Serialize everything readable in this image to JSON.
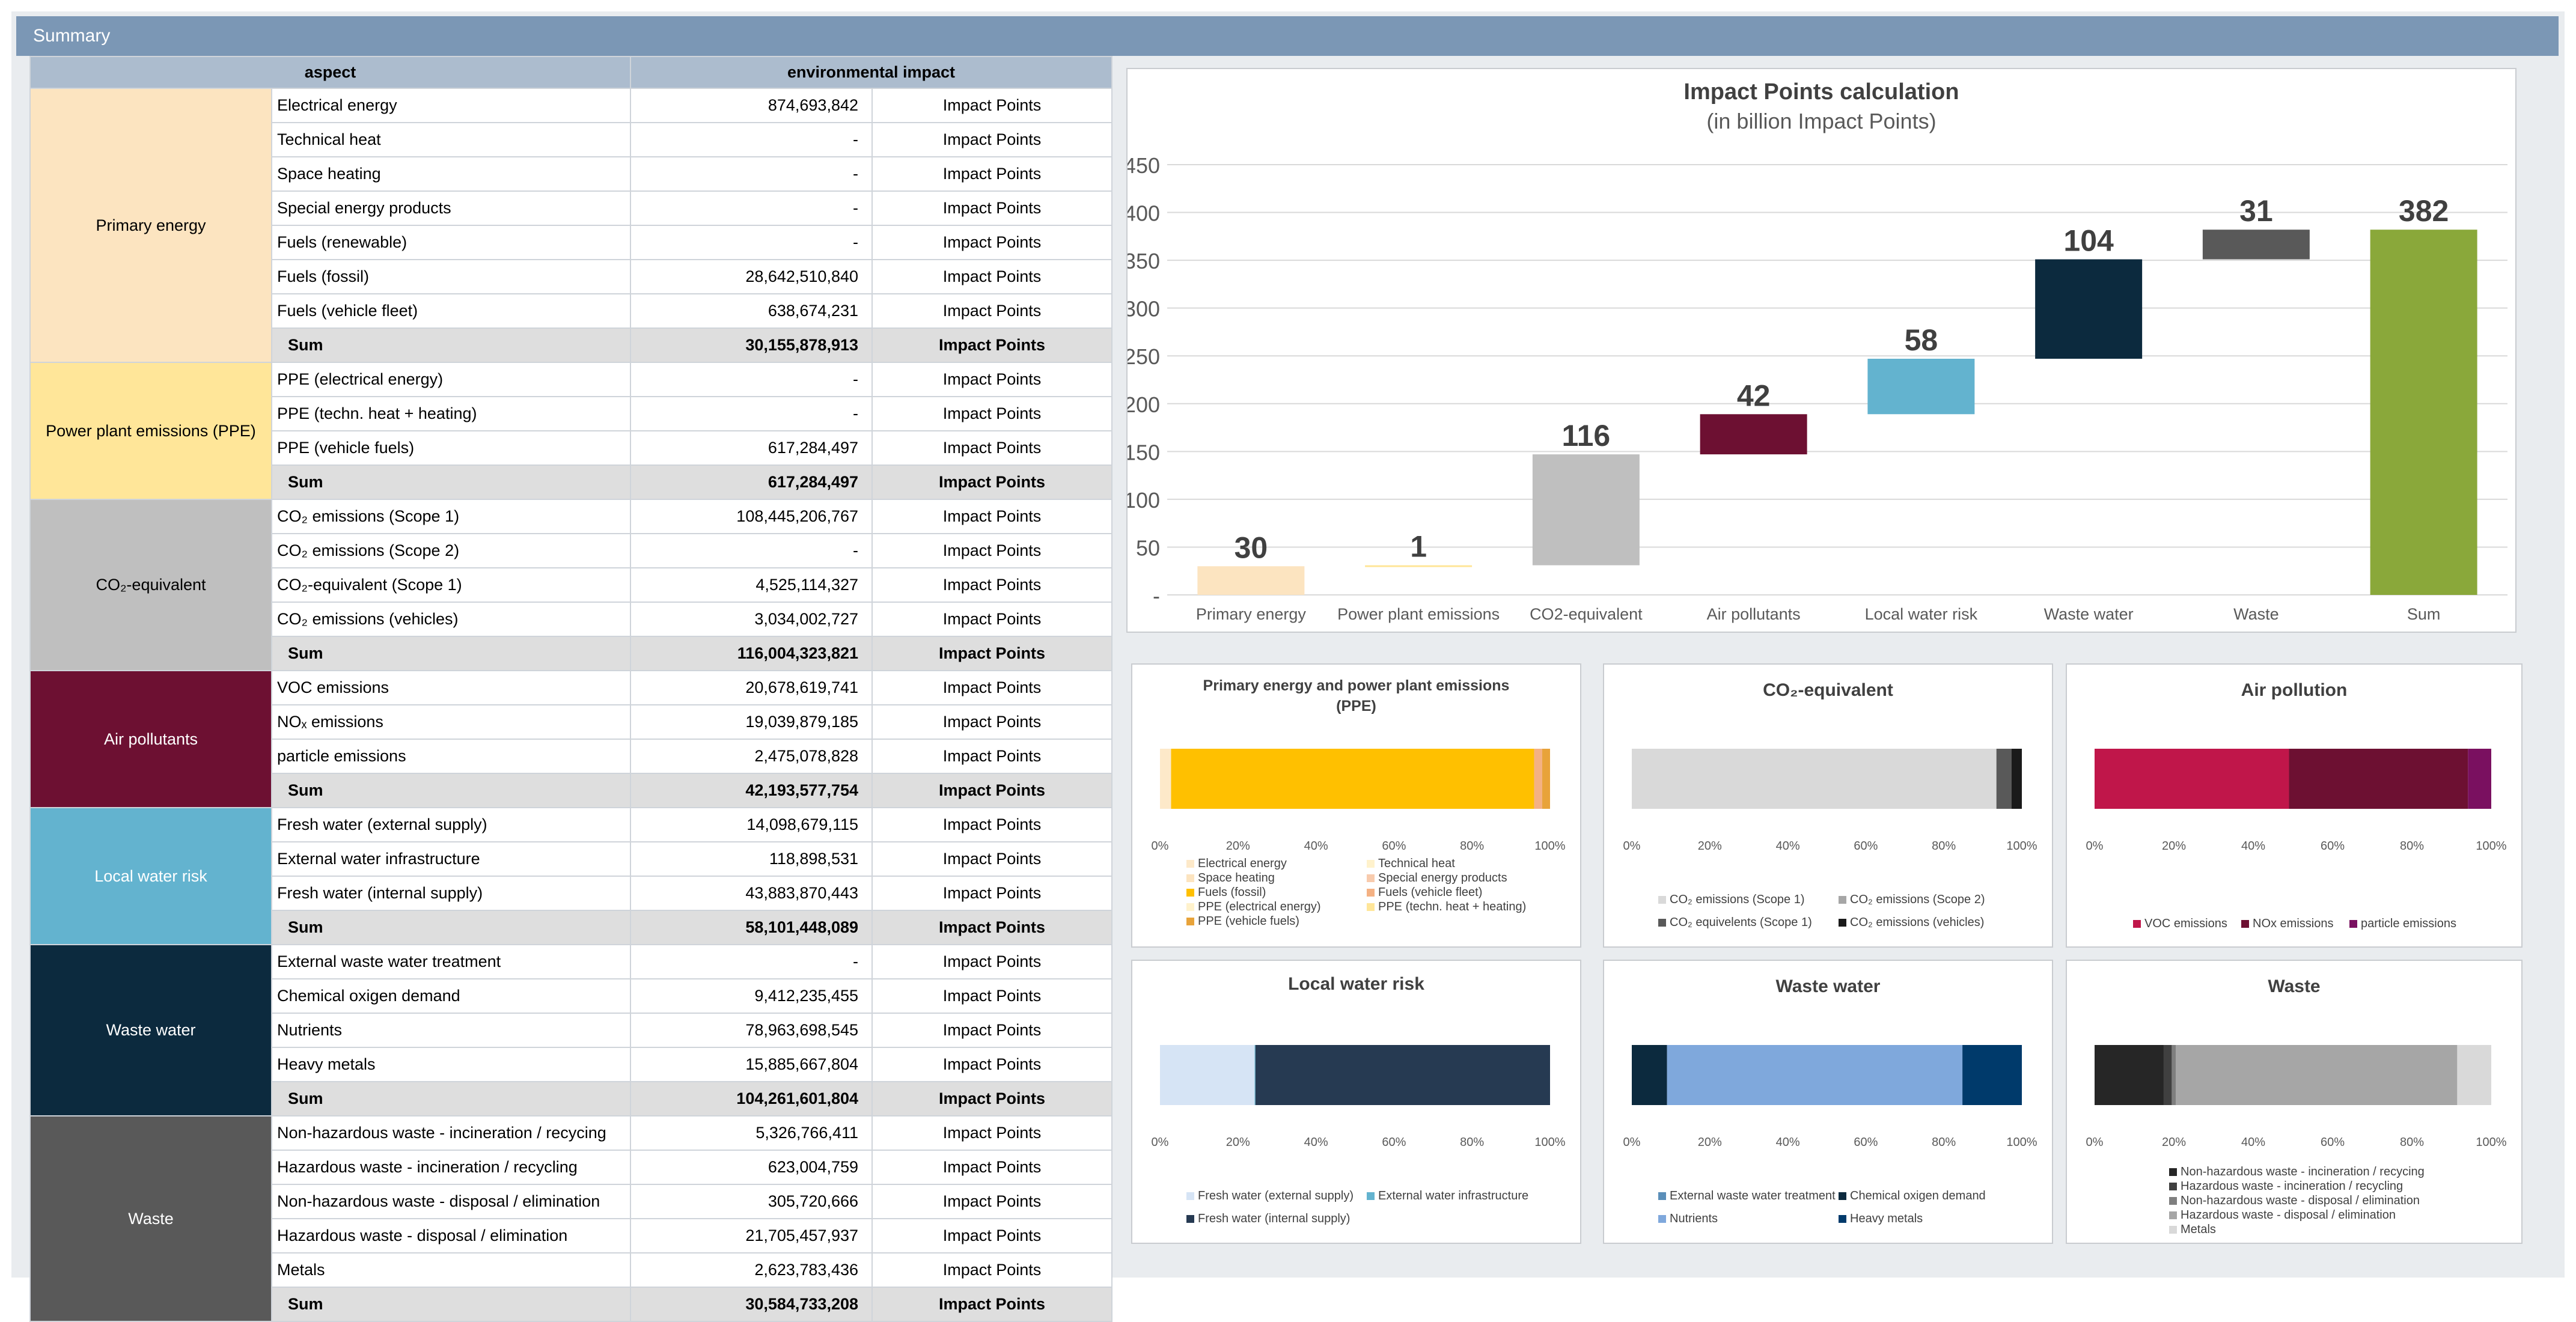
{
  "header": {
    "title": "Summary"
  },
  "table": {
    "col_aspect": "aspect",
    "col_impact": "environmental impact",
    "groups": [
      {
        "label": "Primary energy",
        "color": "#fce4c0",
        "text_color": "#000000",
        "rows": [
          {
            "label": "Electrical energy",
            "value": "874,693,842",
            "unit": "Impact Points"
          },
          {
            "label": "Technical heat",
            "value": "-",
            "unit": "Impact Points"
          },
          {
            "label": "Space heating",
            "value": "-",
            "unit": "Impact Points"
          },
          {
            "label": "Special energy products",
            "value": "-",
            "unit": "Impact Points"
          },
          {
            "label": "Fuels (renewable)",
            "value": "-",
            "unit": "Impact Points"
          },
          {
            "label": "Fuels (fossil)",
            "value": "28,642,510,840",
            "unit": "Impact Points"
          },
          {
            "label": "Fuels (vehicle fleet)",
            "value": "638,674,231",
            "unit": "Impact Points"
          }
        ],
        "sum": {
          "label": "Sum",
          "value": "30,155,878,913",
          "unit": "Impact Points"
        }
      },
      {
        "label": "Power plant emissions (PPE)",
        "color": "#ffe699",
        "text_color": "#000000",
        "rows": [
          {
            "label": "PPE (electrical energy)",
            "value": "-",
            "unit": "Impact Points"
          },
          {
            "label": "PPE (techn. heat + heating)",
            "value": "-",
            "unit": "Impact Points"
          },
          {
            "label": "PPE (vehicle fuels)",
            "value": "617,284,497",
            "unit": "Impact Points"
          }
        ],
        "sum": {
          "label": "Sum",
          "value": "617,284,497",
          "unit": "Impact Points"
        }
      },
      {
        "label": "CO₂-equivalent",
        "color": "#bfbfbf",
        "text_color": "#000000",
        "rows": [
          {
            "label": "CO₂ emissions (Scope 1)",
            "value": "108,445,206,767",
            "unit": "Impact Points"
          },
          {
            "label": "CO₂ emissions (Scope 2)",
            "value": "-",
            "unit": "Impact Points"
          },
          {
            "label": "CO₂-equivalent (Scope 1)",
            "value": "4,525,114,327",
            "unit": "Impact Points"
          },
          {
            "label": "CO₂ emissions (vehicles)",
            "value": "3,034,002,727",
            "unit": "Impact Points"
          }
        ],
        "sum": {
          "label": "Sum",
          "value": "116,004,323,821",
          "unit": "Impact Points"
        }
      },
      {
        "label": "Air pollutants",
        "color": "#6d1032",
        "text_color": "#ffffff",
        "rows": [
          {
            "label": "VOC emissions",
            "value": "20,678,619,741",
            "unit": "Impact Points"
          },
          {
            "label": "NOₓ emissions",
            "value": "19,039,879,185",
            "unit": "Impact Points"
          },
          {
            "label": "particle emissions",
            "value": "2,475,078,828",
            "unit": "Impact Points"
          }
        ],
        "sum": {
          "label": "Sum",
          "value": "42,193,577,754",
          "unit": "Impact Points"
        }
      },
      {
        "label": "Local water risk",
        "color": "#63b3cf",
        "text_color": "#ffffff",
        "rows": [
          {
            "label": "Fresh water (external supply)",
            "value": "14,098,679,115",
            "unit": "Impact Points"
          },
          {
            "label": "External water infrastructure",
            "value": "118,898,531",
            "unit": "Impact Points"
          },
          {
            "label": "Fresh water (internal supply)",
            "value": "43,883,870,443",
            "unit": "Impact Points"
          }
        ],
        "sum": {
          "label": "Sum",
          "value": "58,101,448,089",
          "unit": "Impact Points"
        }
      },
      {
        "label": "Waste water",
        "color": "#0c2a3e",
        "text_color": "#ffffff",
        "rows": [
          {
            "label": "External waste water treatment",
            "value": "-",
            "unit": "Impact Points"
          },
          {
            "label": "Chemical oxigen demand",
            "value": "9,412,235,455",
            "unit": "Impact Points"
          },
          {
            "label": "Nutrients",
            "value": "78,963,698,545",
            "unit": "Impact Points"
          },
          {
            "label": "Heavy metals",
            "value": "15,885,667,804",
            "unit": "Impact Points"
          }
        ],
        "sum": {
          "label": "Sum",
          "value": "104,261,601,804",
          "unit": "Impact Points"
        }
      },
      {
        "label": "Waste",
        "color": "#595959",
        "text_color": "#ffffff",
        "rows": [
          {
            "label": "Non-hazardous waste - incineration / recycing",
            "value": "5,326,766,411",
            "unit": "Impact Points"
          },
          {
            "label": "Hazardous waste - incineration / recycling",
            "value": "623,004,759",
            "unit": "Impact Points"
          },
          {
            "label": "Non-hazardous waste - disposal / elimination",
            "value": "305,720,666",
            "unit": "Impact Points"
          },
          {
            "label": "Hazardous waste - disposal / elimination",
            "value": "21,705,457,937",
            "unit": "Impact Points"
          },
          {
            "label": "Metals",
            "value": "2,623,783,436",
            "unit": "Impact Points"
          }
        ],
        "sum": {
          "label": "Sum",
          "value": "30,584,733,208",
          "unit": "Impact Points"
        }
      }
    ]
  },
  "chart_data": [
    {
      "type": "bar",
      "title": "Impact Points calculation",
      "subtitle": "(in billion Impact Points)",
      "categories": [
        "Primary energy",
        "Power plant emissions",
        "CO2-equivalent",
        "Air pollutants",
        "Local water risk",
        "Waste water",
        "Waste",
        "Sum"
      ],
      "labels": [
        "30",
        "1",
        "116",
        "42",
        "58",
        "104",
        "31",
        "382"
      ],
      "bases": [
        0,
        30,
        31,
        147,
        189,
        247,
        351,
        0
      ],
      "values": [
        30,
        1,
        116,
        42,
        58,
        104,
        31,
        382
      ],
      "colors": [
        "#fce4c0",
        "#ffe699",
        "#bfbfbf",
        "#6d1032",
        "#63b3cf",
        "#0c2a3e",
        "#595959",
        "#8aa83a"
      ],
      "yticks": [
        "-",
        "50",
        "100",
        "150",
        "200",
        "250",
        "300",
        "350",
        "400",
        "450"
      ],
      "ylim": [
        0,
        450
      ],
      "grid": true
    },
    {
      "type": "bar",
      "title": "Primary energy and power plant emissions (PPE)",
      "title_lines": [
        "Primary energy and power plant emissions",
        "(PPE)"
      ],
      "stacked_percent": true,
      "xticks": [
        "0%",
        "20%",
        "40%",
        "60%",
        "80%",
        "100%"
      ],
      "series": [
        {
          "name": "Electrical energy",
          "value": 2.85,
          "color": "#fde9c9"
        },
        {
          "name": "Technical heat",
          "value": 0,
          "color": "#fff2cc"
        },
        {
          "name": "Space heating",
          "value": 0,
          "color": "#fce4c0"
        },
        {
          "name": "Special energy products",
          "value": 0,
          "color": "#f8cbad"
        },
        {
          "name": "Fuels (fossil)",
          "value": 93.1,
          "color": "#ffc000"
        },
        {
          "name": "Fuels (vehicle fleet)",
          "value": 2.08,
          "color": "#f4b183"
        },
        {
          "name": "PPE (electrical energy)",
          "value": 0,
          "color": "#fff2cc"
        },
        {
          "name": "PPE  (techn. heat + heating)",
          "value": 0,
          "color": "#ffe699"
        },
        {
          "name": "PPE (vehicle fuels)",
          "value": 2.01,
          "color": "#e8a33a"
        }
      ]
    },
    {
      "type": "bar",
      "title": "CO₂-equivalent",
      "stacked_percent": true,
      "xticks": [
        "0%",
        "20%",
        "40%",
        "60%",
        "80%",
        "100%"
      ],
      "series": [
        {
          "name": "CO₂ emissions (Scope 1)",
          "value": 93.48,
          "color": "#d9d9d9"
        },
        {
          "name": "CO₂ emissions (Scope 2)",
          "value": 0,
          "color": "#a6a6a6"
        },
        {
          "name": "CO₂ equivelents (Scope 1)",
          "value": 3.9,
          "color": "#595959"
        },
        {
          "name": "CO₂ emissions (vehicles)",
          "value": 2.62,
          "color": "#1a1a1a"
        }
      ]
    },
    {
      "type": "bar",
      "title": "Air pollution",
      "stacked_percent": true,
      "xticks": [
        "0%",
        "20%",
        "40%",
        "60%",
        "80%",
        "100%"
      ],
      "series": [
        {
          "name": "VOC emissions",
          "value": 49.01,
          "color": "#c0164a"
        },
        {
          "name": "NOx emissions",
          "value": 45.12,
          "color": "#6d1032"
        },
        {
          "name": "particle emissions",
          "value": 5.87,
          "color": "#7a1060"
        }
      ]
    },
    {
      "type": "bar",
      "title": "Local water risk",
      "stacked_percent": true,
      "xticks": [
        "0%",
        "20%",
        "40%",
        "60%",
        "80%",
        "100%"
      ],
      "series": [
        {
          "name": "Fresh water (external supply)",
          "value": 24.27,
          "color": "#d6e4f5"
        },
        {
          "name": "External water infrastructure",
          "value": 0.2,
          "color": "#63b3cf"
        },
        {
          "name": "Fresh water (internal supply)",
          "value": 75.53,
          "color": "#263a52"
        }
      ]
    },
    {
      "type": "bar",
      "title": "Waste water",
      "stacked_percent": true,
      "xticks": [
        "0%",
        "20%",
        "40%",
        "60%",
        "80%",
        "100%"
      ],
      "series": [
        {
          "name": "External waste water treatment",
          "value": 0,
          "color": "#5b8fb9"
        },
        {
          "name": "Chemical oxigen demand",
          "value": 9.03,
          "color": "#0c2a3e"
        },
        {
          "name": "Nutrients",
          "value": 75.74,
          "color": "#7fa8dc"
        },
        {
          "name": "Heavy metals",
          "value": 15.24,
          "color": "#003a6b"
        }
      ]
    },
    {
      "type": "bar",
      "title": "Waste",
      "stacked_percent": true,
      "xticks": [
        "0%",
        "20%",
        "40%",
        "60%",
        "80%",
        "100%"
      ],
      "series": [
        {
          "name": "Non-hazardous waste - incineration / recycing",
          "value": 17.42,
          "color": "#262626"
        },
        {
          "name": "Hazardous waste - incineration / recycling",
          "value": 2.04,
          "color": "#404040"
        },
        {
          "name": "Non-hazardous waste - disposal / elimination",
          "value": 1.0,
          "color": "#7f7f7f"
        },
        {
          "name": "Hazardous waste - disposal / elimination",
          "value": 70.97,
          "color": "#a6a6a6"
        },
        {
          "name": "Metals",
          "value": 8.58,
          "color": "#d9d9d9"
        }
      ]
    }
  ]
}
